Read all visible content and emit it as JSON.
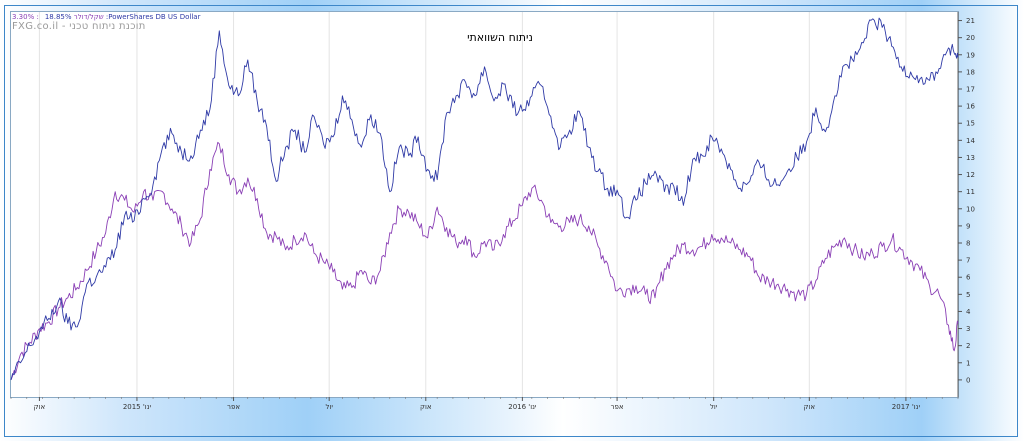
{
  "header": {
    "legend_a": "3.30% :שקל/דולר",
    "legend_b": "18.85% :PowerShares DB US Dollar",
    "brand": "FXG.co.il - תוכנת ניתוח טכני"
  },
  "colors": {
    "series_a": "#8a3fb5",
    "series_b": "#2f3aa6"
  },
  "chart_data": {
    "type": "line",
    "title": "ניתוח השוואתי",
    "xlabel": "",
    "ylabel": "",
    "ylim": [
      -1,
      21.5
    ],
    "y_ticks": [
      0,
      1,
      2,
      3,
      4,
      5,
      6,
      7,
      8,
      9,
      10,
      11,
      12,
      13,
      14,
      15,
      16,
      17,
      18,
      19,
      20,
      21
    ],
    "y_axis_side": "right",
    "grid": {
      "vertical": true,
      "horizontal": false
    },
    "legend": "top-left",
    "x_range": [
      0,
      100
    ],
    "x_ticks": [
      {
        "label": "אוק",
        "x": 3
      },
      {
        "label": "ינו' 2015",
        "x": 13.3
      },
      {
        "label": "אפר",
        "x": 23.5
      },
      {
        "label": "יול",
        "x": 33.6
      },
      {
        "label": "אוק",
        "x": 43.8
      },
      {
        "label": "ינו' 2016",
        "x": 54
      },
      {
        "label": "אפר",
        "x": 64
      },
      {
        "label": "יול",
        "x": 74.2
      },
      {
        "label": "אוק",
        "x": 84.3
      },
      {
        "label": "ינו' 2017",
        "x": 94.5
      }
    ],
    "series": [
      {
        "name": "שקל/דולר",
        "points": [
          [
            0,
            0
          ],
          [
            1,
            1.5
          ],
          [
            2,
            2.2
          ],
          [
            3,
            3
          ],
          [
            4,
            3.4
          ],
          [
            5,
            4.2
          ],
          [
            6,
            4.8
          ],
          [
            7,
            5.4
          ],
          [
            8,
            6.4
          ],
          [
            9,
            7.5
          ],
          [
            10,
            8.6
          ],
          [
            11,
            11
          ],
          [
            12,
            10.5
          ],
          [
            13,
            9.8
          ],
          [
            14,
            11
          ],
          [
            15,
            10.5
          ],
          [
            16,
            11
          ],
          [
            17,
            10
          ],
          [
            18,
            9
          ],
          [
            19,
            8
          ],
          [
            20,
            9.4
          ],
          [
            21,
            12.3
          ],
          [
            22,
            13.8
          ],
          [
            23,
            12
          ],
          [
            24,
            11
          ],
          [
            25,
            11.8
          ],
          [
            26,
            10.6
          ],
          [
            27,
            8.6
          ],
          [
            28,
            8.4
          ],
          [
            29,
            7.6
          ],
          [
            30,
            8.2
          ],
          [
            31,
            8.6
          ],
          [
            32,
            7.4
          ],
          [
            33,
            6.9
          ],
          [
            34,
            6.3
          ],
          [
            35,
            5.3
          ],
          [
            36,
            5.4
          ],
          [
            37,
            6.4
          ],
          [
            38,
            5.6
          ],
          [
            39,
            6.4
          ],
          [
            40,
            8.6
          ],
          [
            41,
            10
          ],
          [
            42,
            9.8
          ],
          [
            43,
            9.1
          ],
          [
            44,
            8.3
          ],
          [
            45,
            10.1
          ],
          [
            46,
            8.9
          ],
          [
            47,
            8
          ],
          [
            48,
            8.4
          ],
          [
            49,
            7.2
          ],
          [
            50,
            8.1
          ],
          [
            51,
            7.6
          ],
          [
            52,
            8.5
          ],
          [
            53,
            9.3
          ],
          [
            54,
            10.2
          ],
          [
            55,
            11.2
          ],
          [
            56,
            10.5
          ],
          [
            57,
            9.2
          ],
          [
            58,
            9
          ],
          [
            59,
            9.2
          ],
          [
            60,
            9.4
          ],
          [
            61,
            9
          ],
          [
            62,
            7.8
          ],
          [
            63,
            6.8
          ],
          [
            64,
            5.2
          ],
          [
            65,
            5.3
          ],
          [
            66,
            5.5
          ],
          [
            67,
            5
          ],
          [
            68,
            4.8
          ],
          [
            69,
            6.5
          ],
          [
            70,
            7.3
          ],
          [
            71,
            7.9
          ],
          [
            72,
            7.6
          ],
          [
            73,
            7.8
          ],
          [
            74,
            8.5
          ],
          [
            75,
            8.3
          ],
          [
            76,
            8
          ],
          [
            77,
            7.6
          ],
          [
            78,
            7.2
          ],
          [
            79,
            6
          ],
          [
            80,
            5.8
          ],
          [
            81,
            5.6
          ],
          [
            82,
            5.3
          ],
          [
            83,
            5
          ],
          [
            84,
            5
          ],
          [
            85,
            5.8
          ],
          [
            86,
            7.1
          ],
          [
            87,
            7.8
          ],
          [
            88,
            8.3
          ],
          [
            89,
            7.6
          ],
          [
            90,
            7.2
          ],
          [
            91,
            7.4
          ],
          [
            92,
            7.8
          ],
          [
            93,
            8.2
          ],
          [
            94,
            7.6
          ],
          [
            95,
            7
          ],
          [
            96,
            6.4
          ],
          [
            97,
            5.5
          ],
          [
            98,
            5
          ],
          [
            99,
            3.2
          ],
          [
            99.6,
            1.7
          ],
          [
            100,
            3.3
          ]
        ]
      },
      {
        "name": "PowerShares DB US Dollar",
        "points": [
          [
            0,
            0
          ],
          [
            1,
            1
          ],
          [
            2,
            2
          ],
          [
            3,
            2.8
          ],
          [
            4,
            3.6
          ],
          [
            5,
            4.6
          ],
          [
            6,
            3.3
          ],
          [
            7,
            3.1
          ],
          [
            8,
            5.6
          ],
          [
            9,
            6
          ],
          [
            10,
            6.6
          ],
          [
            11,
            7.6
          ],
          [
            12,
            9.6
          ],
          [
            13,
            9.3
          ],
          [
            14,
            10.6
          ],
          [
            15,
            11.4
          ],
          [
            16,
            13.6
          ],
          [
            17,
            14.4
          ],
          [
            18,
            13.3
          ],
          [
            19,
            13.1
          ],
          [
            20,
            14.6
          ],
          [
            21,
            15.8
          ],
          [
            22,
            20.4
          ],
          [
            23,
            17.2
          ],
          [
            24,
            16.6
          ],
          [
            25,
            18.7
          ],
          [
            26,
            16.3
          ],
          [
            27,
            14.8
          ],
          [
            28,
            11.6
          ],
          [
            29,
            13.6
          ],
          [
            30,
            14.6
          ],
          [
            31,
            13.3
          ],
          [
            32,
            15.4
          ],
          [
            33,
            13.8
          ],
          [
            34,
            14.2
          ],
          [
            35,
            16.6
          ],
          [
            36,
            15.2
          ],
          [
            37,
            13.6
          ],
          [
            38,
            15.5
          ],
          [
            39,
            14.4
          ],
          [
            40,
            11
          ],
          [
            41,
            13.6
          ],
          [
            42,
            13.1
          ],
          [
            43,
            14.2
          ],
          [
            44,
            12.3
          ],
          [
            45,
            11.7
          ],
          [
            46,
            15.6
          ],
          [
            47,
            16.6
          ],
          [
            48,
            17.4
          ],
          [
            49,
            16.6
          ],
          [
            50,
            18.3
          ],
          [
            51,
            16.3
          ],
          [
            52,
            17.3
          ],
          [
            53,
            15.9
          ],
          [
            54,
            15.7
          ],
          [
            55,
            16.6
          ],
          [
            56,
            17.2
          ],
          [
            57,
            15.4
          ],
          [
            58,
            13.6
          ],
          [
            59,
            14.6
          ],
          [
            60,
            15.7
          ],
          [
            61,
            13.6
          ],
          [
            62,
            12.2
          ],
          [
            63,
            11.2
          ],
          [
            64,
            11.1
          ],
          [
            65,
            9.5
          ],
          [
            66,
            10.5
          ],
          [
            67,
            11.5
          ],
          [
            68,
            12.2
          ],
          [
            69,
            11
          ],
          [
            70,
            11.3
          ],
          [
            71,
            10.2
          ],
          [
            72,
            12.9
          ],
          [
            73,
            13.1
          ],
          [
            74,
            14.2
          ],
          [
            75,
            13.5
          ],
          [
            76,
            12.3
          ],
          [
            77,
            11.2
          ],
          [
            78,
            11.6
          ],
          [
            79,
            12.7
          ],
          [
            80,
            11.7
          ],
          [
            81,
            11.4
          ],
          [
            82,
            12.2
          ],
          [
            83,
            13
          ],
          [
            84,
            13.9
          ],
          [
            85,
            15.9
          ],
          [
            86,
            14.5
          ],
          [
            87,
            16.6
          ],
          [
            88,
            18.4
          ],
          [
            89,
            18.6
          ],
          [
            90,
            19.7
          ],
          [
            91,
            21.1
          ],
          [
            92,
            20.6
          ],
          [
            93,
            19.5
          ],
          [
            94,
            18.3
          ],
          [
            95,
            18
          ],
          [
            96,
            17.6
          ],
          [
            97,
            17.5
          ],
          [
            98,
            18.2
          ],
          [
            99,
            19.4
          ],
          [
            99.6,
            19.1
          ],
          [
            100,
            18.85
          ]
        ]
      }
    ]
  }
}
